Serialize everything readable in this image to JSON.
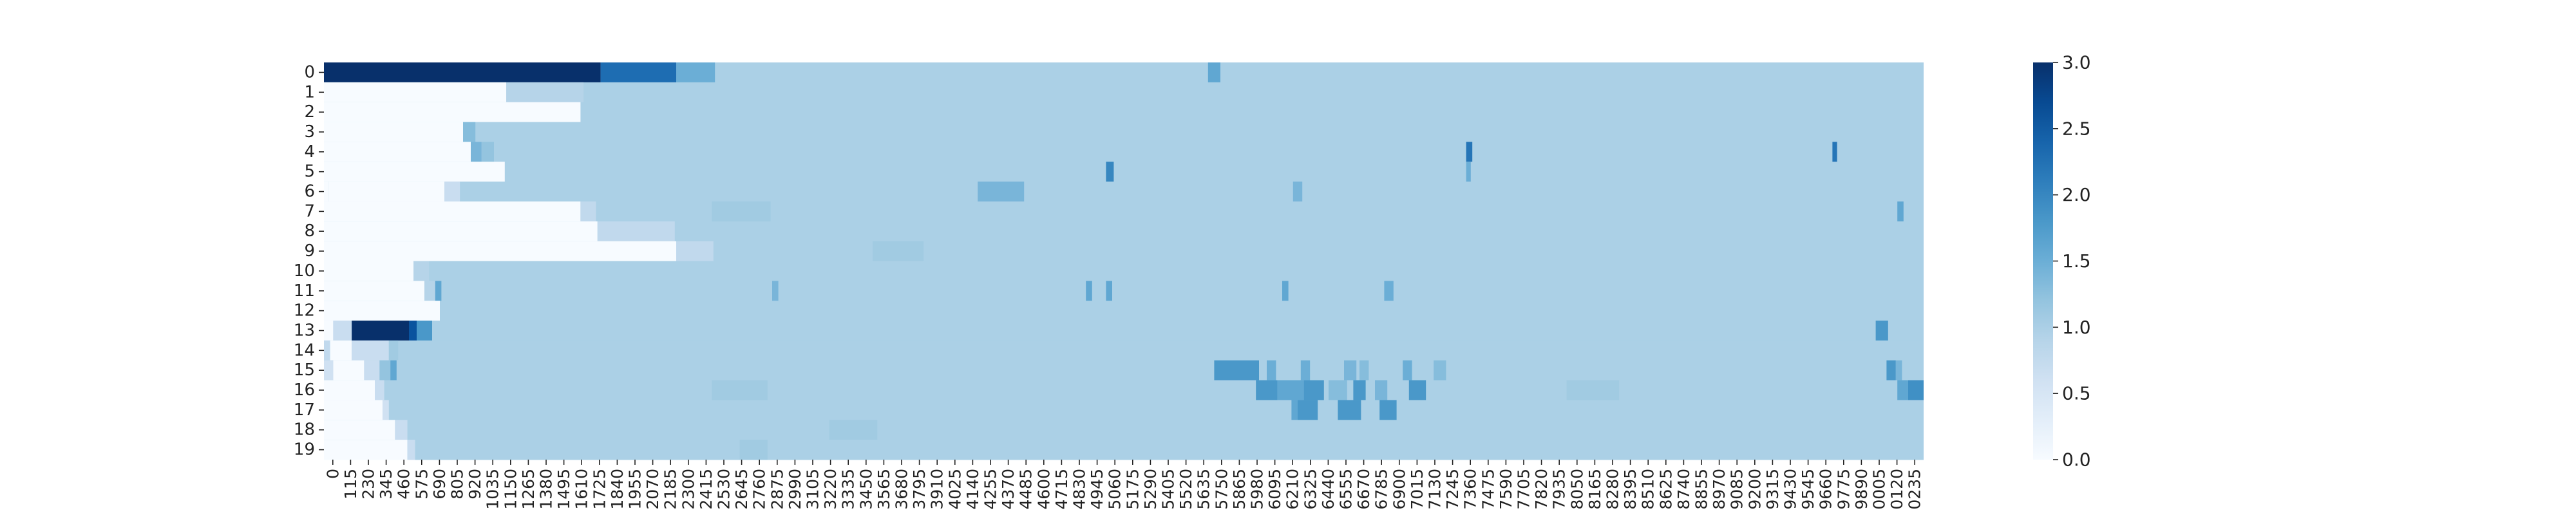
{
  "chart_data": {
    "type": "heatmap",
    "title": "",
    "xlabel": "",
    "ylabel": "",
    "x_tick_labels": [
      "0",
      "115",
      "230",
      "345",
      "460",
      "575",
      "690",
      "805",
      "920",
      "1035",
      "1150",
      "1265",
      "1380",
      "1495",
      "1610",
      "1725",
      "1840",
      "1955",
      "2070",
      "2185",
      "2300",
      "2415",
      "2530",
      "2645",
      "2760",
      "2875",
      "2990",
      "3105",
      "3220",
      "3335",
      "3450",
      "3565",
      "3680",
      "3795",
      "3910",
      "4025",
      "4140",
      "4255",
      "4370",
      "4485",
      "4600",
      "4715",
      "4830",
      "4945",
      "5060",
      "5175",
      "5290",
      "5405",
      "5520",
      "5635",
      "5750",
      "5865",
      "5980",
      "6095",
      "6210",
      "6325",
      "6440",
      "6555",
      "6670",
      "6785",
      "6900",
      "7015",
      "7130",
      "7245",
      "7360",
      "7475",
      "7590",
      "7705",
      "7820",
      "7935",
      "8050",
      "8165",
      "8280",
      "8395",
      "8510",
      "8625",
      "8740",
      "8855",
      "8970",
      "9085",
      "9200",
      "9315",
      "9430",
      "9545",
      "9660",
      "9775",
      "9890",
      "0005",
      "0120",
      "0235"
    ],
    "y_tick_labels": [
      "0",
      "1",
      "2",
      "3",
      "4",
      "5",
      "6",
      "7",
      "8",
      "9",
      "10",
      "11",
      "12",
      "13",
      "14",
      "15",
      "16",
      "17",
      "18",
      "19"
    ],
    "x_range": [
      0,
      10350
    ],
    "colorbar": {
      "min": 0.0,
      "max": 3.0,
      "ticks": [
        "0.0",
        "0.5",
        "1.0",
        "1.5",
        "2.0",
        "2.5",
        "3.0"
      ],
      "colormap": "Blues",
      "color_low": "#f7fbff",
      "color_high": "#08306b"
    },
    "default_value": 1.0,
    "rows": [
      {
        "label": "0",
        "default": 1.0,
        "segments": [
          [
            0,
            1790,
            3.0
          ],
          [
            1790,
            2280,
            2.3
          ],
          [
            2280,
            2530,
            1.5
          ],
          [
            5720,
            5800,
            1.6
          ]
        ]
      },
      {
        "label": "1",
        "default": 1.0,
        "segments": [
          [
            0,
            1180,
            0.0
          ],
          [
            1180,
            1680,
            0.9
          ]
        ]
      },
      {
        "label": "2",
        "default": 1.0,
        "segments": [
          [
            0,
            1660,
            0.0
          ]
        ]
      },
      {
        "label": "3",
        "default": 1.0,
        "segments": [
          [
            0,
            900,
            0.0
          ],
          [
            900,
            980,
            1.3
          ]
        ]
      },
      {
        "label": "4",
        "default": 1.0,
        "segments": [
          [
            0,
            950,
            0.0
          ],
          [
            950,
            1020,
            1.4
          ],
          [
            1020,
            1100,
            1.2
          ],
          [
            7390,
            7430,
            2.2
          ],
          [
            9760,
            9790,
            2.2
          ]
        ]
      },
      {
        "label": "5",
        "default": 1.0,
        "segments": [
          [
            0,
            1170,
            0.0
          ],
          [
            5060,
            5110,
            2.0
          ],
          [
            7390,
            7420,
            1.5
          ]
        ]
      },
      {
        "label": "6",
        "default": 1.0,
        "segments": [
          [
            0,
            30,
            0.0
          ],
          [
            30,
            780,
            0.0
          ],
          [
            780,
            880,
            0.7
          ],
          [
            4230,
            4530,
            1.4
          ],
          [
            6270,
            6330,
            1.4
          ]
        ]
      },
      {
        "label": "7",
        "default": 1.0,
        "segments": [
          [
            0,
            1660,
            0.0
          ],
          [
            1660,
            1760,
            0.8
          ],
          [
            2510,
            2890,
            1.1
          ],
          [
            10180,
            10220,
            1.6
          ]
        ]
      },
      {
        "label": "8",
        "default": 1.0,
        "segments": [
          [
            0,
            1770,
            0.0
          ],
          [
            1770,
            2270,
            0.8
          ]
        ]
      },
      {
        "label": "9",
        "default": 1.0,
        "segments": [
          [
            0,
            2280,
            0.0
          ],
          [
            2280,
            2520,
            0.8
          ],
          [
            3550,
            3880,
            1.1
          ]
        ]
      },
      {
        "label": "10",
        "default": 1.0,
        "segments": [
          [
            0,
            580,
            0.0
          ],
          [
            580,
            680,
            0.9
          ]
        ]
      },
      {
        "label": "11",
        "default": 1.0,
        "segments": [
          [
            0,
            650,
            0.0
          ],
          [
            650,
            720,
            0.9
          ],
          [
            720,
            760,
            1.6
          ],
          [
            2900,
            2940,
            1.4
          ],
          [
            4930,
            4970,
            1.6
          ],
          [
            5060,
            5100,
            1.6
          ],
          [
            6200,
            6240,
            1.6
          ],
          [
            6860,
            6920,
            1.5
          ]
        ]
      },
      {
        "label": "12",
        "default": 1.0,
        "segments": [
          [
            0,
            750,
            0.0
          ]
        ]
      },
      {
        "label": "13",
        "default": 1.0,
        "segments": [
          [
            0,
            60,
            0.0
          ],
          [
            60,
            180,
            0.7
          ],
          [
            180,
            550,
            3.0
          ],
          [
            550,
            600,
            2.6
          ],
          [
            600,
            700,
            1.8
          ],
          [
            10040,
            10120,
            1.8
          ]
        ]
      },
      {
        "label": "14",
        "default": 1.0,
        "segments": [
          [
            0,
            40,
            0.8
          ],
          [
            40,
            180,
            0.0
          ],
          [
            180,
            420,
            0.7
          ],
          [
            420,
            480,
            1.1
          ]
        ]
      },
      {
        "label": "15",
        "default": 1.0,
        "segments": [
          [
            0,
            60,
            0.6
          ],
          [
            60,
            260,
            0.0
          ],
          [
            260,
            360,
            0.7
          ],
          [
            360,
            430,
            1.2
          ],
          [
            430,
            470,
            1.6
          ],
          [
            5760,
            6050,
            1.8
          ],
          [
            6100,
            6160,
            1.5
          ],
          [
            6320,
            6380,
            1.5
          ],
          [
            6600,
            6680,
            1.4
          ],
          [
            6700,
            6760,
            1.3
          ],
          [
            6980,
            7040,
            1.5
          ],
          [
            7180,
            7260,
            1.3
          ],
          [
            10110,
            10170,
            1.8
          ],
          [
            10170,
            10210,
            1.4
          ]
        ]
      },
      {
        "label": "16",
        "default": 1.0,
        "segments": [
          [
            0,
            330,
            0.0
          ],
          [
            330,
            390,
            0.7
          ],
          [
            2510,
            2870,
            1.1
          ],
          [
            6030,
            6170,
            1.8
          ],
          [
            6170,
            6340,
            1.6
          ],
          [
            6340,
            6470,
            1.8
          ],
          [
            6500,
            6620,
            1.3
          ],
          [
            6660,
            6740,
            1.8
          ],
          [
            6800,
            6880,
            1.4
          ],
          [
            7020,
            7130,
            1.8
          ],
          [
            8040,
            8380,
            1.1
          ],
          [
            10180,
            10250,
            1.6
          ],
          [
            10250,
            10350,
            1.9
          ]
        ]
      },
      {
        "label": "17",
        "default": 1.0,
        "segments": [
          [
            0,
            380,
            0.0
          ],
          [
            380,
            420,
            0.6
          ],
          [
            6260,
            6300,
            1.6
          ],
          [
            6300,
            6430,
            1.8
          ],
          [
            6560,
            6710,
            1.8
          ],
          [
            6830,
            6940,
            1.8
          ]
        ]
      },
      {
        "label": "18",
        "default": 1.0,
        "segments": [
          [
            0,
            460,
            0.0
          ],
          [
            460,
            540,
            0.7
          ],
          [
            3270,
            3580,
            1.1
          ]
        ]
      },
      {
        "label": "19",
        "default": 1.0,
        "segments": [
          [
            0,
            540,
            0.0
          ],
          [
            540,
            590,
            0.7
          ],
          [
            2690,
            2870,
            1.1
          ]
        ]
      }
    ]
  }
}
